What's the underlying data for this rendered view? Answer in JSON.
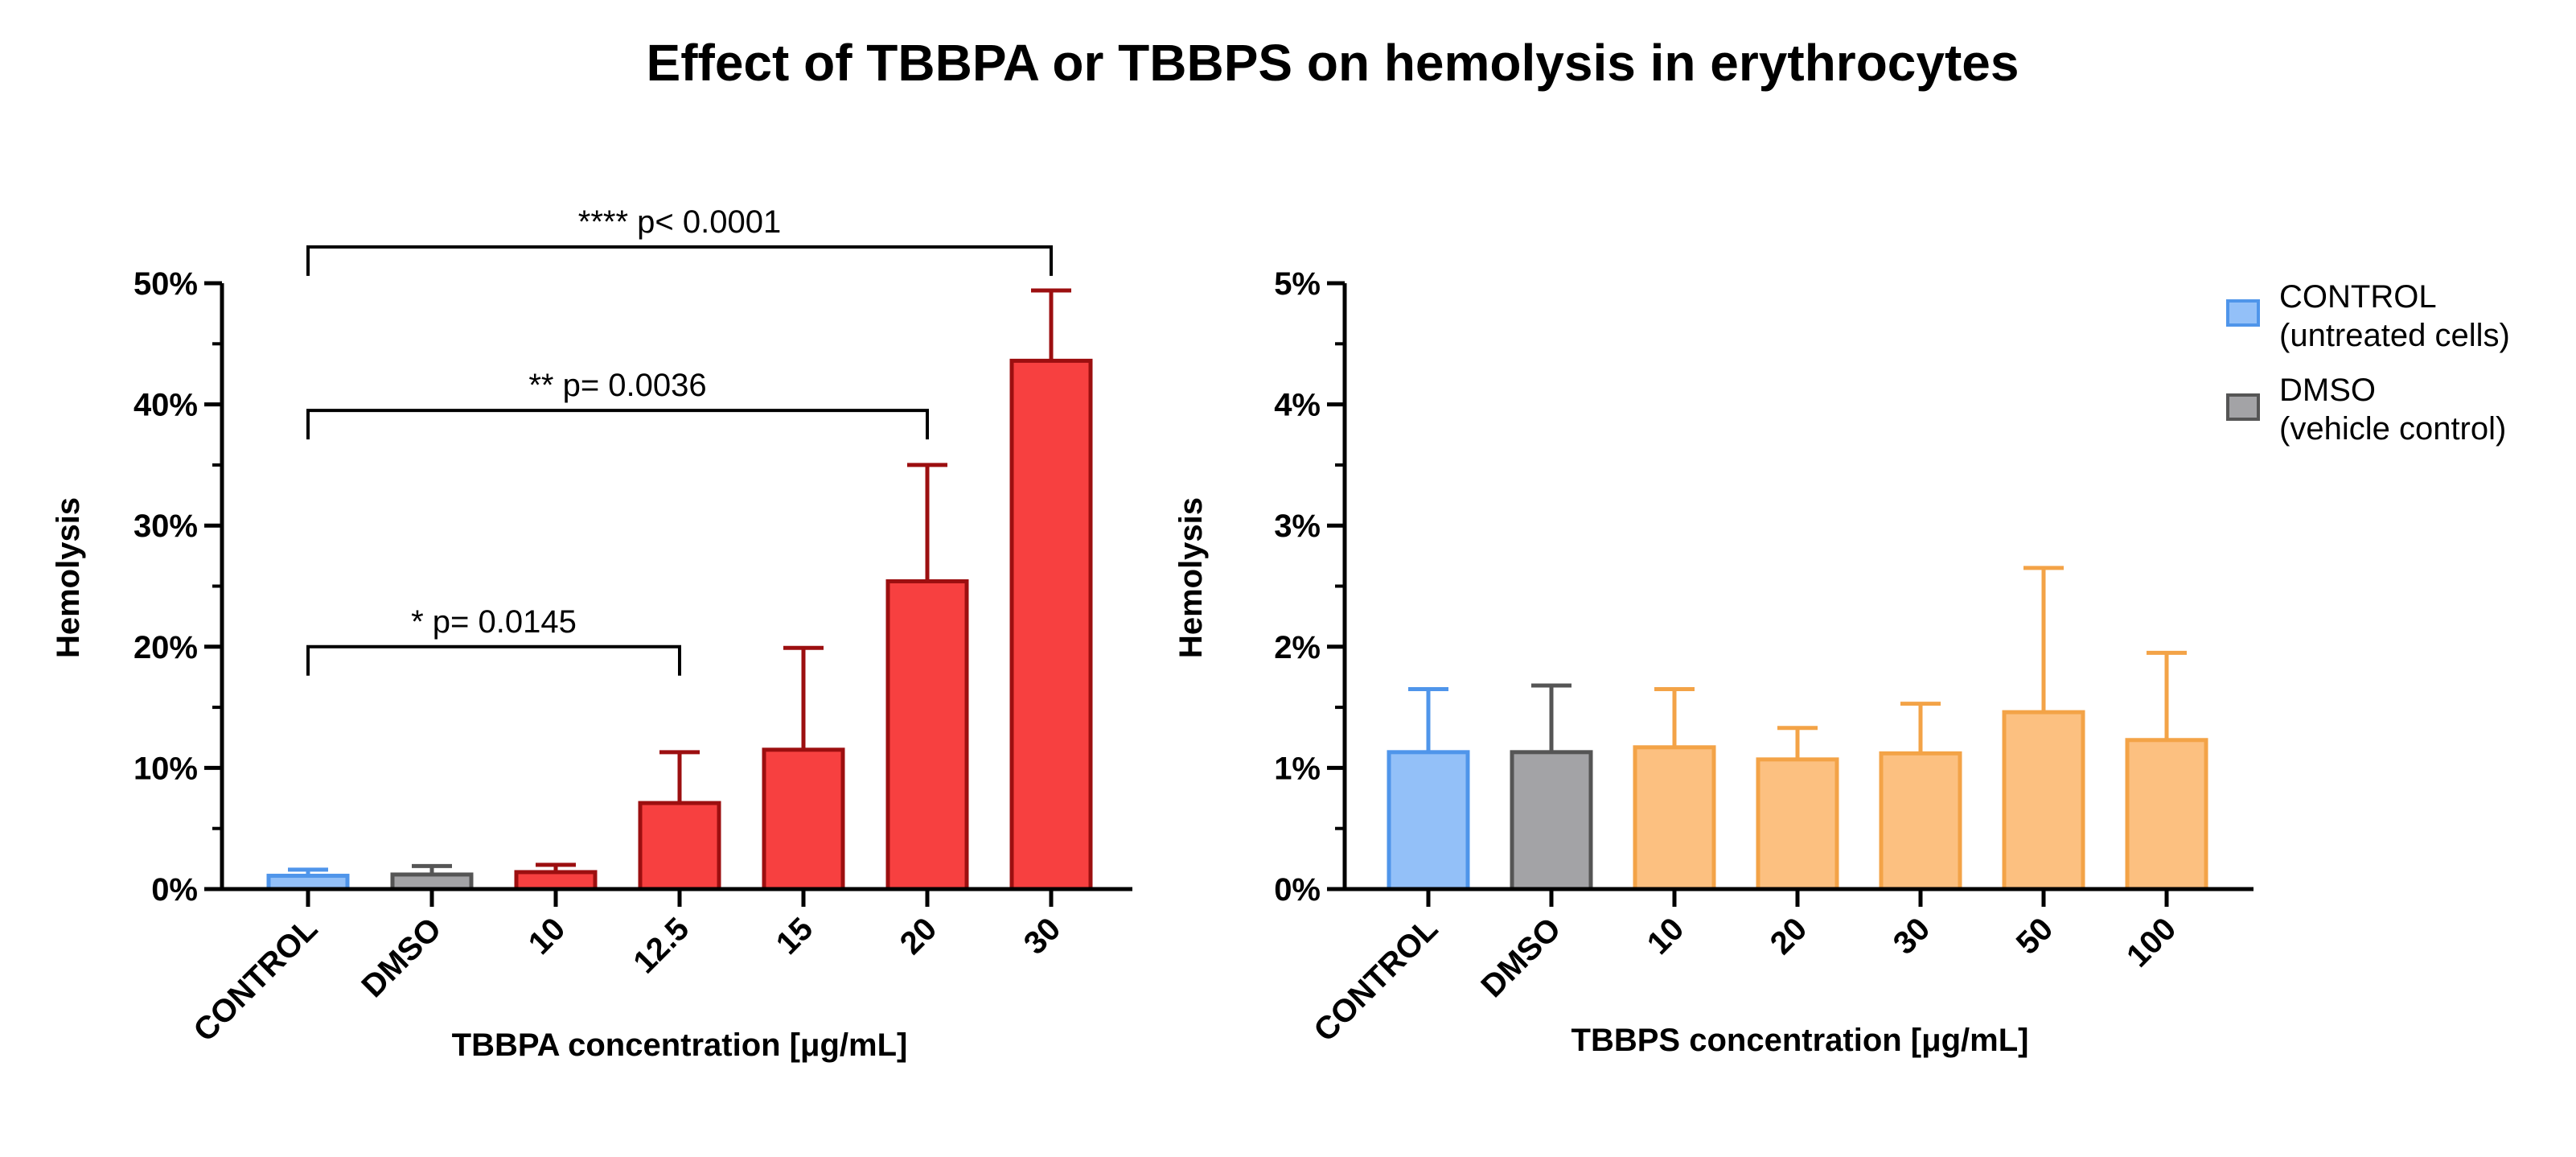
{
  "figure_title": "Effect of TBBPA or TBBPS on hemolysis in erythrocytes",
  "colors": {
    "control_fill": "#93c0f8",
    "control_stroke": "#4f95ea",
    "dmso_fill": "#a3a3a6",
    "dmso_stroke": "#555555",
    "tbbpa_fill": "#f74040",
    "tbbpa_stroke": "#9c0f10",
    "tbbps_fill": "#fcc080",
    "tbbps_stroke": "#f3a347"
  },
  "legend": [
    {
      "line1": "CONTROL",
      "line2": "(untreated cells)",
      "color": "#93c0f8",
      "stroke": "#4f95ea"
    },
    {
      "line1": "DMSO",
      "line2": "(vehicle control)",
      "color": "#a3a3a6",
      "stroke": "#555555"
    }
  ],
  "chart_data": [
    {
      "type": "bar",
      "xlabel": "TBBPA concentration [μg/mL]",
      "ylabel": "Hemolysis",
      "ylim": [
        0,
        50
      ],
      "yticks": [
        0,
        10,
        20,
        30,
        40,
        50
      ],
      "ytick_labels": [
        "0%",
        "10%",
        "20%",
        "30%",
        "40%",
        "50%"
      ],
      "minor_tick_step": 5,
      "categories": [
        "CONTROL",
        "DMSO",
        "10",
        "12.5",
        "15",
        "20",
        "30"
      ],
      "values": [
        1.1,
        1.2,
        1.4,
        7.1,
        11.5,
        25.4,
        43.6
      ],
      "error_upper": [
        1.6,
        1.9,
        2.0,
        11.3,
        19.9,
        35.0,
        49.4
      ],
      "groups": [
        "control",
        "dmso",
        "tbbpa",
        "tbbpa",
        "tbbpa",
        "tbbpa",
        "tbbpa"
      ],
      "annotations": [
        {
          "text": "* p= 0.0145",
          "from": 0,
          "to": 3,
          "y": 20.0
        },
        {
          "text": "** p= 0.0036",
          "from": 0,
          "to": 5,
          "y": 39.5
        },
        {
          "text": "**** p< 0.0001",
          "from": 0,
          "to": 6,
          "y": 53.0
        }
      ]
    },
    {
      "type": "bar",
      "xlabel": "TBBPS concentration [μg/mL]",
      "ylabel": "Hemolysis",
      "ylim": [
        0,
        5
      ],
      "yticks": [
        0,
        1,
        2,
        3,
        4,
        5
      ],
      "ytick_labels": [
        "0%",
        "1%",
        "2%",
        "3%",
        "4%",
        "5%"
      ],
      "minor_tick_step": 0.5,
      "categories": [
        "CONTROL",
        "DMSO",
        "10",
        "20",
        "30",
        "50",
        "100"
      ],
      "values": [
        1.13,
        1.13,
        1.17,
        1.07,
        1.12,
        1.46,
        1.23
      ],
      "error_upper": [
        1.65,
        1.68,
        1.65,
        1.33,
        1.53,
        2.65,
        1.95
      ],
      "groups": [
        "control",
        "dmso",
        "tbbps",
        "tbbps",
        "tbbps",
        "tbbps",
        "tbbps"
      ]
    }
  ]
}
